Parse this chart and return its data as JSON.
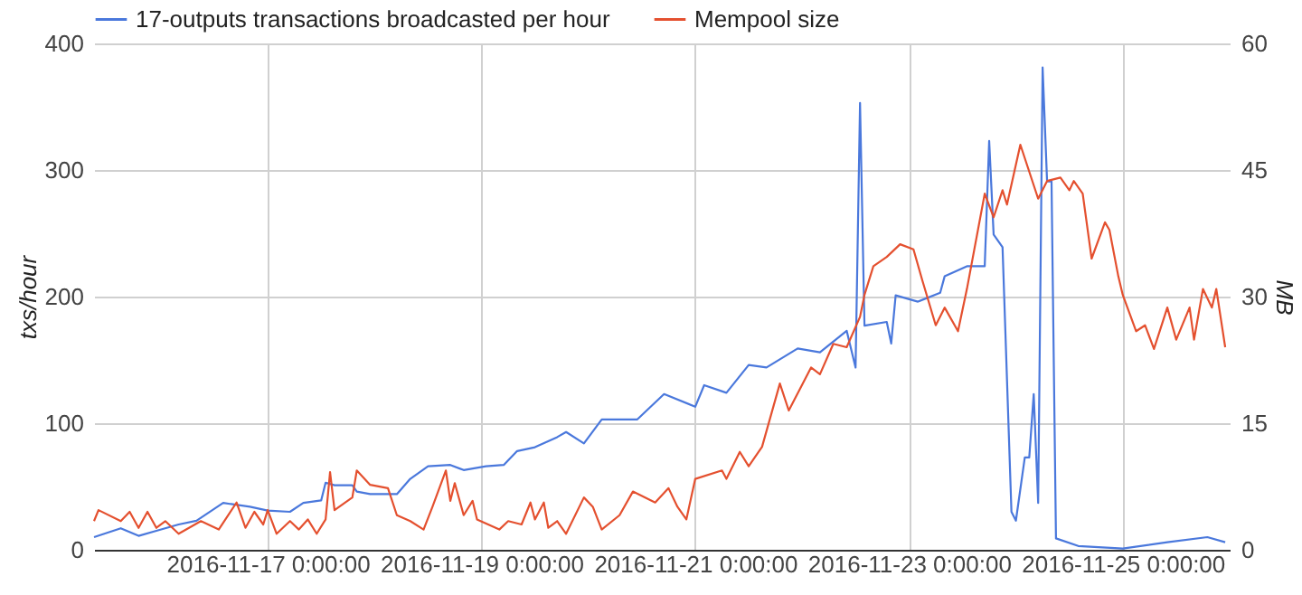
{
  "chart_data": {
    "type": "line",
    "ylabel": "txs/hour",
    "y2label": "MB",
    "xlim": [
      "2016-11-15T09:00",
      "2016-11-26T00:00"
    ],
    "xticks": [
      {
        "value": "2016-11-17T00:00",
        "label": "2016-11-17 0:00:00"
      },
      {
        "value": "2016-11-19T00:00",
        "label": "2016-11-19 0:00:00"
      },
      {
        "value": "2016-11-21T00:00",
        "label": "2016-11-21 0:00:00"
      },
      {
        "value": "2016-11-23T00:00",
        "label": "2016-11-23 0:00:00"
      },
      {
        "value": "2016-11-25T00:00",
        "label": "2016-11-25 0:00:00"
      }
    ],
    "ylim": [
      0,
      400
    ],
    "yticks": [
      0,
      100,
      200,
      300,
      400
    ],
    "y2lim": [
      0,
      60
    ],
    "y2ticks": [
      0,
      15,
      30,
      45,
      60
    ],
    "grid": true,
    "legend": "top",
    "marker": "none",
    "line_style": "solid",
    "series": [
      {
        "name": "17-outputs transactions broadcasted per hour",
        "color": "#4a78dc",
        "x": [
          "2016-11-15T09:00",
          "2016-11-15T15:00",
          "2016-11-15T19:00",
          "2016-11-15T23:00",
          "2016-11-16T04:00",
          "2016-11-16T08:00",
          "2016-11-16T14:00",
          "2016-11-16T20:00",
          "2016-11-17T00:00",
          "2016-11-17T05:00",
          "2016-11-17T08:00",
          "2016-11-17T12:00",
          "2016-11-17T13:00",
          "2016-11-17T15:00",
          "2016-11-17T19:00",
          "2016-11-17T20:00",
          "2016-11-17T23:00",
          "2016-11-18T03:00",
          "2016-11-18T05:00",
          "2016-11-18T08:00",
          "2016-11-18T12:00",
          "2016-11-18T17:00",
          "2016-11-18T20:00",
          "2016-11-19T01:00",
          "2016-11-19T05:00",
          "2016-11-19T08:00",
          "2016-11-19T12:00",
          "2016-11-19T17:00",
          "2016-11-19T19:00",
          "2016-11-19T23:00",
          "2016-11-20T03:00",
          "2016-11-20T07:00",
          "2016-11-20T11:00",
          "2016-11-20T17:00",
          "2016-11-21T00:00",
          "2016-11-21T02:00",
          "2016-11-21T07:00",
          "2016-11-21T12:00",
          "2016-11-21T16:00",
          "2016-11-21T23:00",
          "2016-11-22T04:00",
          "2016-11-22T10:00",
          "2016-11-22T12:00",
          "2016-11-22T13:00",
          "2016-11-22T14:00",
          "2016-11-22T19:00",
          "2016-11-22T20:00",
          "2016-11-22T21:00",
          "2016-11-23T02:00",
          "2016-11-23T07:00",
          "2016-11-23T08:00",
          "2016-11-23T13:00",
          "2016-11-23T17:00",
          "2016-11-23T18:00",
          "2016-11-23T19:00",
          "2016-11-23T21:00",
          "2016-11-23T23:00",
          "2016-11-24T00:00",
          "2016-11-24T02:00",
          "2016-11-24T03:00",
          "2016-11-24T04:00",
          "2016-11-24T05:00",
          "2016-11-24T06:00",
          "2016-11-24T07:00",
          "2016-11-24T08:00",
          "2016-11-24T09:00",
          "2016-11-24T14:00",
          "2016-11-25T00:00",
          "2016-11-25T10:00",
          "2016-11-25T19:00",
          "2016-11-25T23:00"
        ],
        "values": [
          10,
          17,
          11,
          15,
          20,
          23,
          37,
          34,
          31,
          30,
          37,
          39,
          53,
          51,
          51,
          46,
          44,
          44,
          44,
          56,
          66,
          67,
          63,
          66,
          67,
          78,
          81,
          89,
          93,
          84,
          103,
          103,
          103,
          123,
          113,
          130,
          124,
          146,
          144,
          159,
          156,
          173,
          144,
          353,
          177,
          180,
          163,
          201,
          196,
          203,
          216,
          224,
          224,
          323,
          249,
          239,
          30,
          23,
          73,
          73,
          123,
          37,
          381,
          291,
          291,
          9,
          3,
          1,
          6,
          10,
          6
        ]
      },
      {
        "name": "Mempool size",
        "color": "#e4502f",
        "axis": "y2",
        "x": [
          "2016-11-15T09:00",
          "2016-11-15T10:00",
          "2016-11-15T15:00",
          "2016-11-15T17:00",
          "2016-11-15T19:00",
          "2016-11-15T21:00",
          "2016-11-15T23:00",
          "2016-11-16T01:00",
          "2016-11-16T04:00",
          "2016-11-16T09:00",
          "2016-11-16T13:00",
          "2016-11-16T17:00",
          "2016-11-16T19:00",
          "2016-11-16T21:00",
          "2016-11-16T23:00",
          "2016-11-17T00:00",
          "2016-11-17T02:00",
          "2016-11-17T05:00",
          "2016-11-17T07:00",
          "2016-11-17T09:00",
          "2016-11-17T11:00",
          "2016-11-17T13:00",
          "2016-11-17T14:00",
          "2016-11-17T15:00",
          "2016-11-17T19:00",
          "2016-11-17T20:00",
          "2016-11-17T23:00",
          "2016-11-18T03:00",
          "2016-11-18T05:00",
          "2016-11-18T08:00",
          "2016-11-18T11:00",
          "2016-11-18T13:00",
          "2016-11-18T16:00",
          "2016-11-18T17:00",
          "2016-11-18T18:00",
          "2016-11-18T20:00",
          "2016-11-18T22:00",
          "2016-11-18T23:00",
          "2016-11-19T04:00",
          "2016-11-19T06:00",
          "2016-11-19T09:00",
          "2016-11-19T11:00",
          "2016-11-19T12:00",
          "2016-11-19T14:00",
          "2016-11-19T15:00",
          "2016-11-19T17:00",
          "2016-11-19T19:00",
          "2016-11-19T23:00",
          "2016-11-20T01:00",
          "2016-11-20T03:00",
          "2016-11-20T07:00",
          "2016-11-20T10:00",
          "2016-11-20T15:00",
          "2016-11-20T18:00",
          "2016-11-20T20:00",
          "2016-11-20T22:00",
          "2016-11-21T00:00",
          "2016-11-21T06:00",
          "2016-11-21T07:00",
          "2016-11-21T10:00",
          "2016-11-21T12:00",
          "2016-11-21T15:00",
          "2016-11-21T19:00",
          "2016-11-21T21:00",
          "2016-11-22T02:00",
          "2016-11-22T04:00",
          "2016-11-22T07:00",
          "2016-11-22T10:00",
          "2016-11-22T13:00",
          "2016-11-22T14:00",
          "2016-11-22T16:00",
          "2016-11-22T19:00",
          "2016-11-22T22:00",
          "2016-11-23T01:00",
          "2016-11-23T03:00",
          "2016-11-23T06:00",
          "2016-11-23T08:00",
          "2016-11-23T11:00",
          "2016-11-23T13:00",
          "2016-11-23T17:00",
          "2016-11-23T19:00",
          "2016-11-23T21:00",
          "2016-11-23T22:00",
          "2016-11-24T01:00",
          "2016-11-24T05:00",
          "2016-11-24T07:00",
          "2016-11-24T10:00",
          "2016-11-24T12:00",
          "2016-11-24T13:00",
          "2016-11-24T15:00",
          "2016-11-24T17:00",
          "2016-11-24T20:00",
          "2016-11-24T21:00",
          "2016-11-24T23:00",
          "2016-11-25T00:00",
          "2016-11-25T03:00",
          "2016-11-25T05:00",
          "2016-11-25T07:00",
          "2016-11-25T10:00",
          "2016-11-25T12:00",
          "2016-11-25T15:00",
          "2016-11-25T16:00",
          "2016-11-25T18:00",
          "2016-11-25T20:00",
          "2016-11-25T21:00",
          "2016-11-25T23:00"
        ],
        "values": [
          3.4,
          4.7,
          3.4,
          4.5,
          2.6,
          4.5,
          2.6,
          3.4,
          1.9,
          3.4,
          2.4,
          5.6,
          2.6,
          4.5,
          3.0,
          4.7,
          1.9,
          3.4,
          2.4,
          3.6,
          1.9,
          3.6,
          9.2,
          4.7,
          6.2,
          9.4,
          7.7,
          7.3,
          4.1,
          3.4,
          2.4,
          5.1,
          9.4,
          5.8,
          7.9,
          4.1,
          5.8,
          3.6,
          2.4,
          3.4,
          3.0,
          5.6,
          3.6,
          5.6,
          2.6,
          3.4,
          1.9,
          6.2,
          5.1,
          2.4,
          4.1,
          6.9,
          5.6,
          7.3,
          5.1,
          3.6,
          8.4,
          9.4,
          8.4,
          11.6,
          9.9,
          12.2,
          19.7,
          16.5,
          21.6,
          20.8,
          24.4,
          24.0,
          27.6,
          30.2,
          33.6,
          34.7,
          36.2,
          35.6,
          31.9,
          26.6,
          28.7,
          25.9,
          30.9,
          42.2,
          39.4,
          42.6,
          40.9,
          48.0,
          41.6,
          43.7,
          44.1,
          42.6,
          43.7,
          42.2,
          34.5,
          38.8,
          37.9,
          32.4,
          30.2,
          25.9,
          26.6,
          23.8,
          28.7,
          24.9,
          28.7,
          24.9,
          30.9,
          28.7,
          30.9,
          24.0
        ]
      }
    ]
  }
}
